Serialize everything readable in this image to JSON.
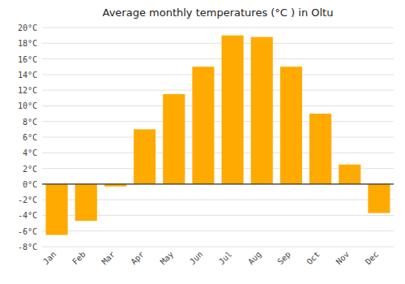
{
  "chart_data": {
    "type": "bar",
    "title": "Average monthly temperatures (°C ) in Oltu",
    "categories": [
      "Jan",
      "Feb",
      "Mar",
      "Apr",
      "May",
      "Jun",
      "Jul",
      "Aug",
      "Sep",
      "Oct",
      "Nov",
      "Dec"
    ],
    "values": [
      -6.5,
      -4.7,
      -0.3,
      7.0,
      11.5,
      15.0,
      19.0,
      18.8,
      15.0,
      9.0,
      2.5,
      -3.7
    ],
    "color": "#FFAA00",
    "ylim": [
      -8,
      20
    ],
    "yticks": [
      {
        "value": -8,
        "label": "-8°C"
      },
      {
        "value": -6,
        "label": "-6°C"
      },
      {
        "value": -4,
        "label": "-4°C"
      },
      {
        "value": -2,
        "label": "-2°C"
      },
      {
        "value": 0,
        "label": "0°C"
      },
      {
        "value": 2,
        "label": "2°C"
      },
      {
        "value": 4,
        "label": "4°C"
      },
      {
        "value": 6,
        "label": "6°C"
      },
      {
        "value": 8,
        "label": "8°C"
      },
      {
        "value": 10,
        "label": "10°C"
      },
      {
        "value": 12,
        "label": "12°C"
      },
      {
        "value": 14,
        "label": "14°C"
      },
      {
        "value": 16,
        "label": "16°C"
      },
      {
        "value": 18,
        "label": "18°C"
      },
      {
        "value": 20,
        "label": "20°C"
      }
    ],
    "grid": true
  }
}
